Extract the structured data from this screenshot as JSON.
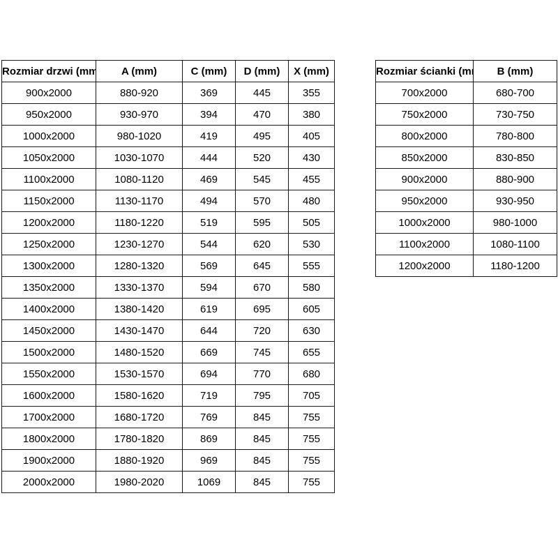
{
  "colors": {
    "background": "#ffffff",
    "border": "#1a1a1a",
    "text": "#000000"
  },
  "doors_table": {
    "headers": [
      "Rozmiar drzwi (mm)",
      "A (mm)",
      "C (mm)",
      "D (mm)",
      "X (mm)"
    ],
    "rows": [
      [
        "900x2000",
        "880-920",
        "369",
        "445",
        "355"
      ],
      [
        "950x2000",
        "930-970",
        "394",
        "470",
        "380"
      ],
      [
        "1000x2000",
        "980-1020",
        "419",
        "495",
        "405"
      ],
      [
        "1050x2000",
        "1030-1070",
        "444",
        "520",
        "430"
      ],
      [
        "1100x2000",
        "1080-1120",
        "469",
        "545",
        "455"
      ],
      [
        "1150x2000",
        "1130-1170",
        "494",
        "570",
        "480"
      ],
      [
        "1200x2000",
        "1180-1220",
        "519",
        "595",
        "505"
      ],
      [
        "1250x2000",
        "1230-1270",
        "544",
        "620",
        "530"
      ],
      [
        "1300x2000",
        "1280-1320",
        "569",
        "645",
        "555"
      ],
      [
        "1350x2000",
        "1330-1370",
        "594",
        "670",
        "580"
      ],
      [
        "1400x2000",
        "1380-1420",
        "619",
        "695",
        "605"
      ],
      [
        "1450x2000",
        "1430-1470",
        "644",
        "720",
        "630"
      ],
      [
        "1500x2000",
        "1480-1520",
        "669",
        "745",
        "655"
      ],
      [
        "1550x2000",
        "1530-1570",
        "694",
        "770",
        "680"
      ],
      [
        "1600x2000",
        "1580-1620",
        "719",
        "795",
        "705"
      ],
      [
        "1700x2000",
        "1680-1720",
        "769",
        "845",
        "755"
      ],
      [
        "1800x2000",
        "1780-1820",
        "869",
        "845",
        "755"
      ],
      [
        "1900x2000",
        "1880-1920",
        "969",
        "845",
        "755"
      ],
      [
        "2000x2000",
        "1980-2020",
        "1069",
        "845",
        "755"
      ]
    ]
  },
  "walls_table": {
    "headers": [
      "Rozmiar ścianki (mm)",
      "B (mm)"
    ],
    "rows": [
      [
        "700x2000",
        "680-700"
      ],
      [
        "750x2000",
        "730-750"
      ],
      [
        "800x2000",
        "780-800"
      ],
      [
        "850x2000",
        "830-850"
      ],
      [
        "900x2000",
        "880-900"
      ],
      [
        "950x2000",
        "930-950"
      ],
      [
        "1000x2000",
        "980-1000"
      ],
      [
        "1100x2000",
        "1080-1100"
      ],
      [
        "1200x2000",
        "1180-1200"
      ]
    ]
  }
}
